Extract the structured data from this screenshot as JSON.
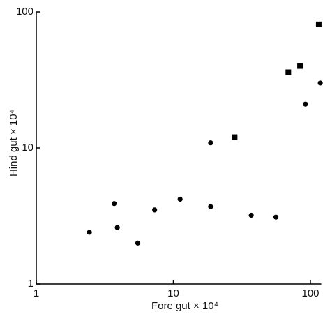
{
  "chart_data": {
    "type": "scatter",
    "xlabel": "Fore gut × 10⁴",
    "ylabel": "Hind gut × 10⁴",
    "xscale": "log",
    "yscale": "log",
    "xlim": [
      1,
      120
    ],
    "ylim": [
      1,
      100
    ],
    "xticks": [
      1,
      10,
      100
    ],
    "yticks": [
      1,
      10,
      100
    ],
    "series": [
      {
        "marker": "circle",
        "color": "#000000",
        "x": [
          2.44,
          3.7,
          3.9,
          5.5,
          7.3,
          11.2,
          18.7,
          18.7,
          37,
          56,
          92,
          118
        ],
        "values": [
          2.4,
          3.9,
          2.6,
          2.0,
          3.5,
          4.2,
          10.9,
          3.7,
          3.2,
          3.1,
          21,
          30
        ]
      },
      {
        "marker": "square",
        "color": "#000000",
        "x": [
          28,
          69,
          84,
          115
        ],
        "values": [
          12,
          36,
          40,
          81
        ]
      }
    ]
  }
}
